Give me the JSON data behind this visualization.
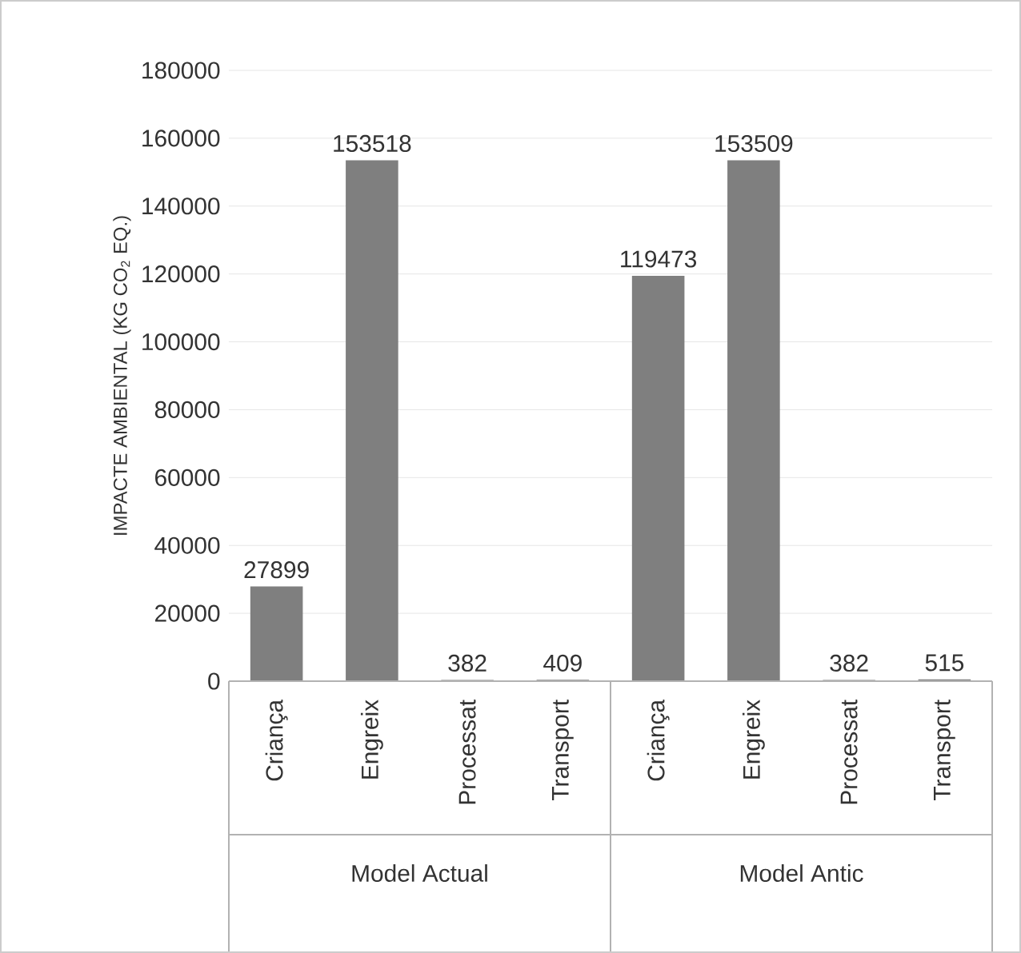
{
  "chart_data": {
    "type": "bar",
    "ylabel": "IMPACTE AMBIENTAL (KG CO$_{2}$ EQ.)",
    "categories": [
      "Criança",
      "Engreix",
      "Processat",
      "Transport",
      "Criança",
      "Engreix",
      "Processat",
      "Transport"
    ],
    "values": [
      27899,
      153518,
      382,
      409,
      119473,
      153509,
      382,
      515
    ],
    "color": "#7f7f7f",
    "ylim": [
      0,
      180000
    ],
    "yticks": [
      0,
      20000,
      40000,
      60000,
      80000,
      100000,
      120000,
      140000,
      160000,
      180000
    ],
    "grid": "y",
    "data_labels": true,
    "annotations": [
      "Model Actual",
      "Model Antic"
    ]
  }
}
